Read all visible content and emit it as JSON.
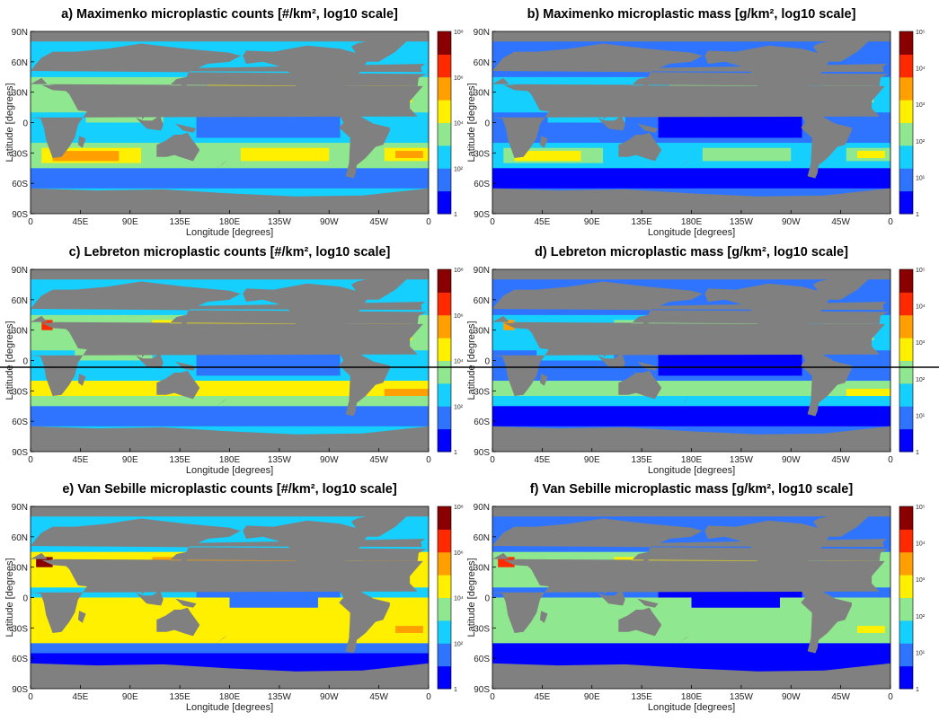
{
  "figure": {
    "separator_line": true,
    "colormap": [
      "#0000ff",
      "#2f74ff",
      "#15cfff",
      "#8fe88f",
      "#fff000",
      "#ffa000",
      "#ff2a00",
      "#8a0000"
    ],
    "land_color": "#808080"
  },
  "chart_data": [
    {
      "id": "a",
      "type": "heatmap",
      "title": "a) Maximenko microplastic counts [#/km², log10 scale]",
      "xlabel": "Longitude [degrees]",
      "ylabel": "Latitude [degrees]",
      "xticks": [
        "0",
        "45E",
        "90E",
        "135E",
        "180E",
        "135W",
        "90W",
        "45W",
        "0"
      ],
      "yticks": [
        "90N",
        "60N",
        "30N",
        "0",
        "30S",
        "60S",
        "90S"
      ],
      "colorbar_ticks": [
        "10⁸",
        "10⁶",
        "10⁴",
        "10²",
        "1"
      ],
      "xlim": [
        0,
        360
      ],
      "ylim": [
        -90,
        90
      ],
      "grid": false,
      "colorbar": "right"
    },
    {
      "id": "b",
      "type": "heatmap",
      "title": "b) Maximenko microplastic mass [g/km², log10 scale]",
      "xlabel": "Longitude [degrees]",
      "ylabel": "Latitude [degrees]",
      "xticks": [
        "0",
        "45E",
        "90E",
        "135E",
        "180E",
        "135W",
        "90W",
        "45W",
        "0"
      ],
      "yticks": [
        "90N",
        "60N",
        "30N",
        "0",
        "30S",
        "60S",
        "90S"
      ],
      "colorbar_ticks": [
        "10⁵",
        "10⁴",
        "10³",
        "10²",
        "10¹",
        "1"
      ],
      "xlim": [
        0,
        360
      ],
      "ylim": [
        -90,
        90
      ],
      "grid": false,
      "colorbar": "right"
    },
    {
      "id": "c",
      "type": "heatmap",
      "title": "c) Lebreton microplastic counts [#/km², log10 scale]",
      "xlabel": "Longitude [degrees]",
      "ylabel": "Latitude [degrees]",
      "xticks": [
        "0",
        "45E",
        "90E",
        "135E",
        "180E",
        "135W",
        "90W",
        "45W",
        "0"
      ],
      "yticks": [
        "90N",
        "60N",
        "30N",
        "0",
        "30S",
        "60S",
        "90S"
      ],
      "colorbar_ticks": [
        "10⁸",
        "10⁶",
        "10⁴",
        "10²",
        "1"
      ],
      "xlim": [
        0,
        360
      ],
      "ylim": [
        -90,
        90
      ],
      "grid": false,
      "colorbar": "right"
    },
    {
      "id": "d",
      "type": "heatmap",
      "title": "d) Lebreton microplastic mass [g/km², log10 scale]",
      "xlabel": "Longitude [degrees]",
      "ylabel": "Latitude [degrees]",
      "xticks": [
        "0",
        "45E",
        "90E",
        "135E",
        "180E",
        "135W",
        "90W",
        "45W",
        "0"
      ],
      "yticks": [
        "90N",
        "60N",
        "30N",
        "0",
        "30S",
        "60S",
        "90S"
      ],
      "colorbar_ticks": [
        "10⁵",
        "10⁴",
        "10³",
        "10²",
        "10¹",
        "1"
      ],
      "xlim": [
        0,
        360
      ],
      "ylim": [
        -90,
        90
      ],
      "grid": false,
      "colorbar": "right"
    },
    {
      "id": "e",
      "type": "heatmap",
      "title": "e) Van Sebille microplastic counts [#/km², log10 scale]",
      "xlabel": "Longitude [degrees]",
      "ylabel": "Latitude [degrees]",
      "xticks": [
        "0",
        "45E",
        "90E",
        "135E",
        "180E",
        "135W",
        "90W",
        "45W",
        "0"
      ],
      "yticks": [
        "90N",
        "60N",
        "30N",
        "0",
        "30S",
        "60S",
        "90S"
      ],
      "colorbar_ticks": [
        "10⁸",
        "10⁶",
        "10⁴",
        "10²",
        "1"
      ],
      "xlim": [
        0,
        360
      ],
      "ylim": [
        -90,
        90
      ],
      "grid": false,
      "colorbar": "right"
    },
    {
      "id": "f",
      "type": "heatmap",
      "title": "f) Van Sebille microplastic mass [g/km², log10 scale]",
      "xlabel": "Longitude [degrees]",
      "ylabel": "Latitude [degrees]",
      "xticks": [
        "0",
        "45E",
        "90E",
        "135E",
        "180E",
        "135W",
        "90W",
        "45W",
        "0"
      ],
      "yticks": [
        "90N",
        "60N",
        "30N",
        "0",
        "30S",
        "60S",
        "90S"
      ],
      "colorbar_ticks": [
        "10⁵",
        "10⁴",
        "10³",
        "10²",
        "10¹",
        "1"
      ],
      "xlim": [
        0,
        360
      ],
      "ylim": [
        -90,
        90
      ],
      "grid": false,
      "colorbar": "right"
    }
  ]
}
